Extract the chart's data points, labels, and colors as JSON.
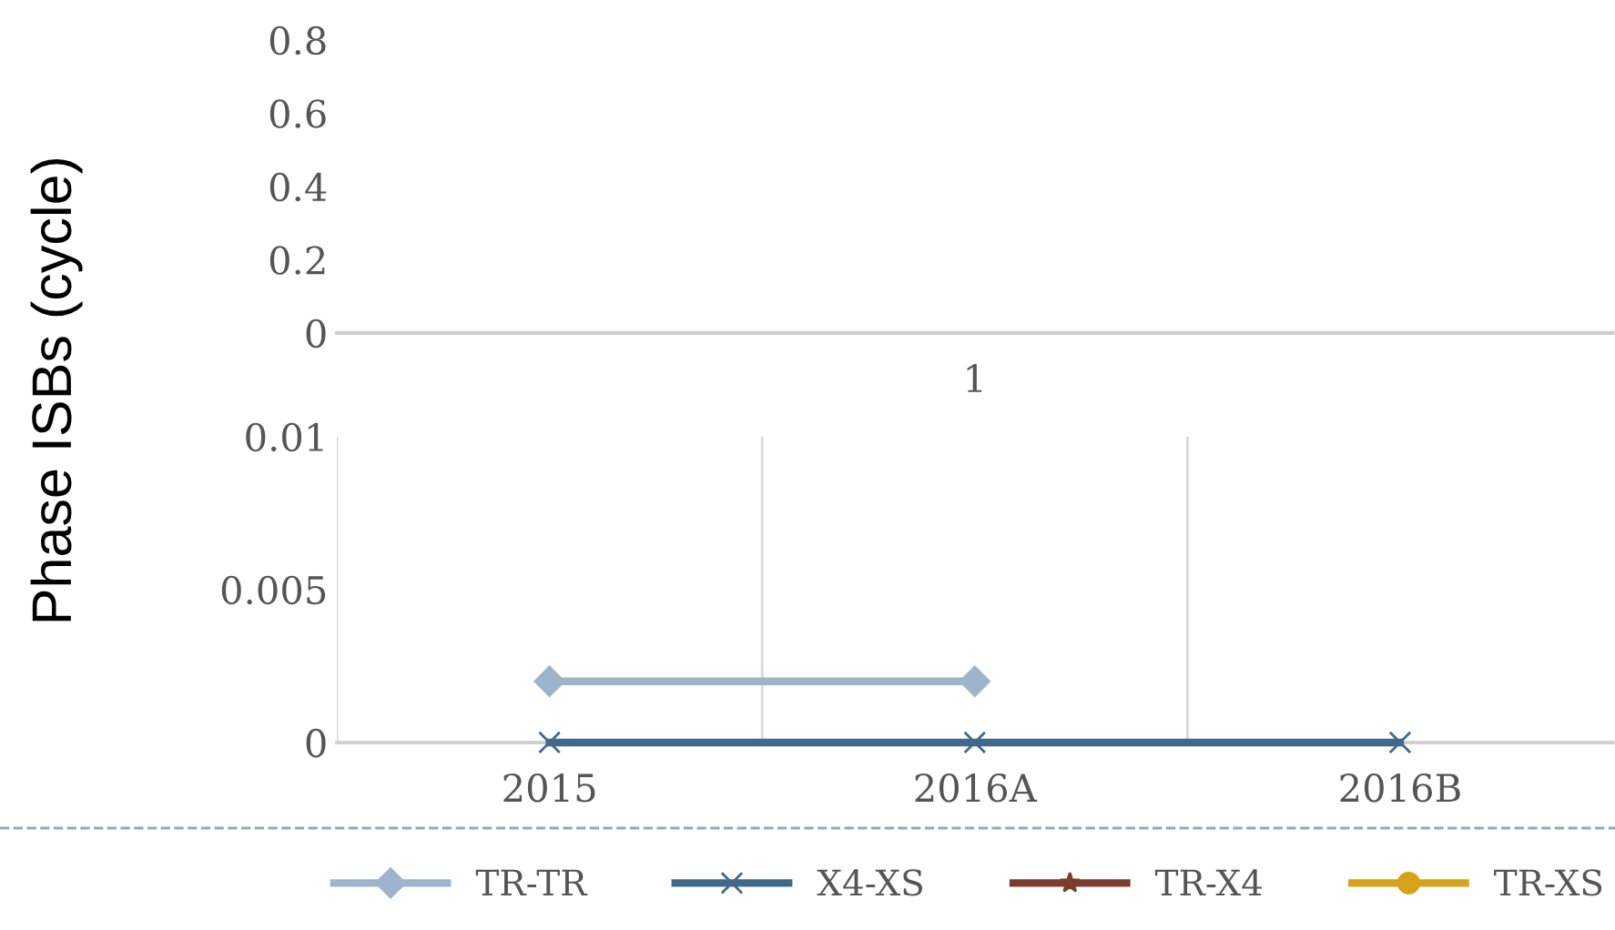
{
  "chart_data": [
    {
      "type": "line",
      "categories": [
        "1"
      ],
      "values": [
        null
      ],
      "ylim": [
        0,
        0.8
      ],
      "yticks": [
        0,
        0.2,
        0.4,
        0.6,
        0.8
      ],
      "grid": false
    },
    {
      "type": "line",
      "categories": [
        "2015",
        "2016A",
        "2016B"
      ],
      "ylabel": "Phase ISBs (cycle)",
      "ylim": [
        0,
        0.01
      ],
      "yticks": [
        0,
        0.005,
        0.01
      ],
      "grid": "x",
      "legend": "bottom",
      "series": [
        {
          "name": "TR-TR",
          "color": "#9db4cc",
          "marker": "diamond",
          "values": [
            0.002,
            0.002,
            null
          ]
        },
        {
          "name": "X4-XS",
          "color": "#41698c",
          "marker": "cross",
          "values": [
            0,
            0,
            0
          ]
        },
        {
          "name": "TR-X4",
          "color": "#7a3d2e",
          "marker": "star",
          "values": [
            null,
            null,
            null
          ]
        },
        {
          "name": "TR-XS",
          "color": "#d6a21a",
          "marker": "circle",
          "values": [
            null,
            null,
            null
          ]
        }
      ]
    }
  ]
}
